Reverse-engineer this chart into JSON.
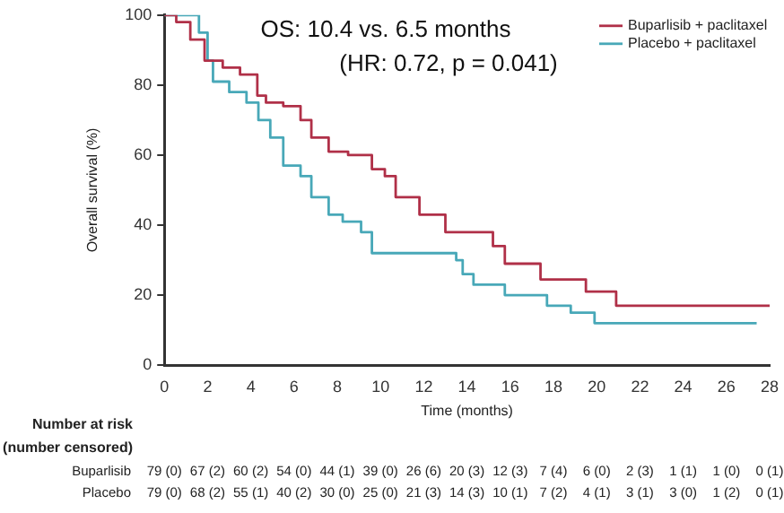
{
  "chart_data": {
    "type": "step",
    "xlabel": "Time (months)",
    "ylabel": "Overall survival (%)",
    "xlim": [
      0,
      28
    ],
    "xticks": [
      0,
      2,
      4,
      6,
      8,
      10,
      12,
      14,
      16,
      18,
      20,
      22,
      24,
      26,
      28
    ],
    "ylim": [
      0,
      100
    ],
    "yticks": [
      0,
      20,
      40,
      60,
      80,
      100
    ],
    "legend": "top right",
    "grid": false,
    "series": [
      {
        "name": "Buparlisib + paclitaxel",
        "color": "#b03048",
        "x": [
          0,
          0.55,
          1.2,
          1.86,
          2.7,
          3.5,
          4.3,
          4.7,
          5.5,
          6.3,
          6.8,
          7.6,
          8.5,
          9.6,
          10.2,
          10.7,
          11.8,
          13,
          14.9,
          15.2,
          15.75,
          17.4,
          19.5,
          20.9,
          28
        ],
        "values": [
          100,
          98,
          93,
          87,
          85,
          83,
          77,
          75,
          74,
          70,
          65,
          61,
          60,
          56,
          54,
          48,
          43,
          38,
          38,
          34,
          29,
          24.5,
          21,
          17,
          17
        ]
      },
      {
        "name": "Placebo + paclitaxel",
        "color": "#48a8b8",
        "x": [
          0,
          0.75,
          1.6,
          2,
          2.25,
          3,
          3.8,
          4.35,
          4.9,
          5.5,
          6.3,
          6.8,
          7.6,
          8.25,
          9.1,
          9.6,
          11.8,
          13.5,
          13.8,
          14.3,
          15.75,
          17.7,
          18.8,
          19.9,
          27.4
        ],
        "values": [
          100,
          100,
          95,
          87,
          81,
          78,
          75,
          70,
          65,
          57,
          54,
          48,
          43,
          41,
          38,
          32,
          32,
          30,
          26,
          23,
          20,
          17,
          15,
          12,
          12
        ]
      }
    ],
    "annotations": [
      "OS: 10.4 vs. 6.5 months",
      "(HR: 0.72, p = 0.041)",
      "Number at risk",
      "(number censored)",
      "Buparlisib 79 (0) 67 (2) 60 (2) 54 (0) 44 (1) 39 (0) 26 (6) 20 (3) 12 (3) 7 (4) 6 (0) 2 (3) 1 (1) 1 (0) 0 (1)",
      "Placebo 79 (0) 68 (2) 55 (1) 40 (2) 30 (0) 25 (0) 21 (3) 14 (3) 10 (1) 7 (2) 4 (1) 3 (1) 3 (0) 1 (2) 0 (1)"
    ]
  }
}
